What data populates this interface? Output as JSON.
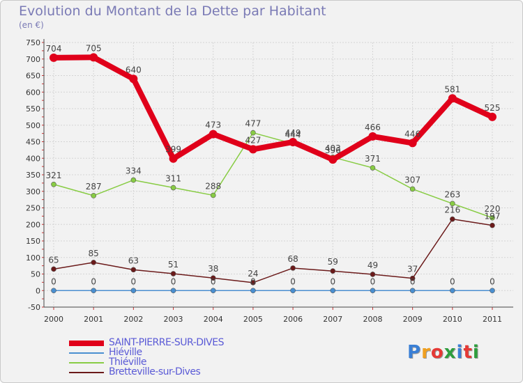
{
  "title": "Evolution du Montant de la Dette par Habitant",
  "subtitle": "(en €)",
  "logo_text": "Proxiti",
  "chart_data": {
    "type": "line",
    "title": "Evolution du Montant de la Dette par Habitant",
    "ylabel": "(en €)",
    "ylim": [
      -50,
      750
    ],
    "yticks": [
      -50,
      0,
      50,
      100,
      150,
      200,
      250,
      300,
      350,
      400,
      450,
      500,
      550,
      600,
      650,
      700,
      750
    ],
    "categories": [
      "2000",
      "2001",
      "2002",
      "2003",
      "2004",
      "2005",
      "2006",
      "2007",
      "2008",
      "2009",
      "2010",
      "2011"
    ],
    "grid": true,
    "legend_position": "bottom-left",
    "series": [
      {
        "name": "SAINT-PIERRE-SUR-DIVES",
        "color": "#e0001a",
        "values": [
          704,
          705,
          640,
          399,
          473,
          427,
          449,
          396,
          466,
          446,
          581,
          525
        ]
      },
      {
        "name": "Hiéville",
        "color": "#4a8fd0",
        "values": [
          0,
          0,
          0,
          0,
          0,
          0,
          0,
          0,
          0,
          0,
          0,
          0
        ]
      },
      {
        "name": "Thiéville",
        "color": "#88cc44",
        "values": [
          321,
          287,
          334,
          311,
          288,
          477,
          444,
          403,
          371,
          307,
          263,
          220
        ]
      },
      {
        "name": "Bretteville-sur-Dives",
        "color": "#6b1a1a",
        "values": [
          65,
          85,
          63,
          51,
          38,
          24,
          68,
          59,
          49,
          37,
          216,
          197
        ]
      }
    ]
  }
}
